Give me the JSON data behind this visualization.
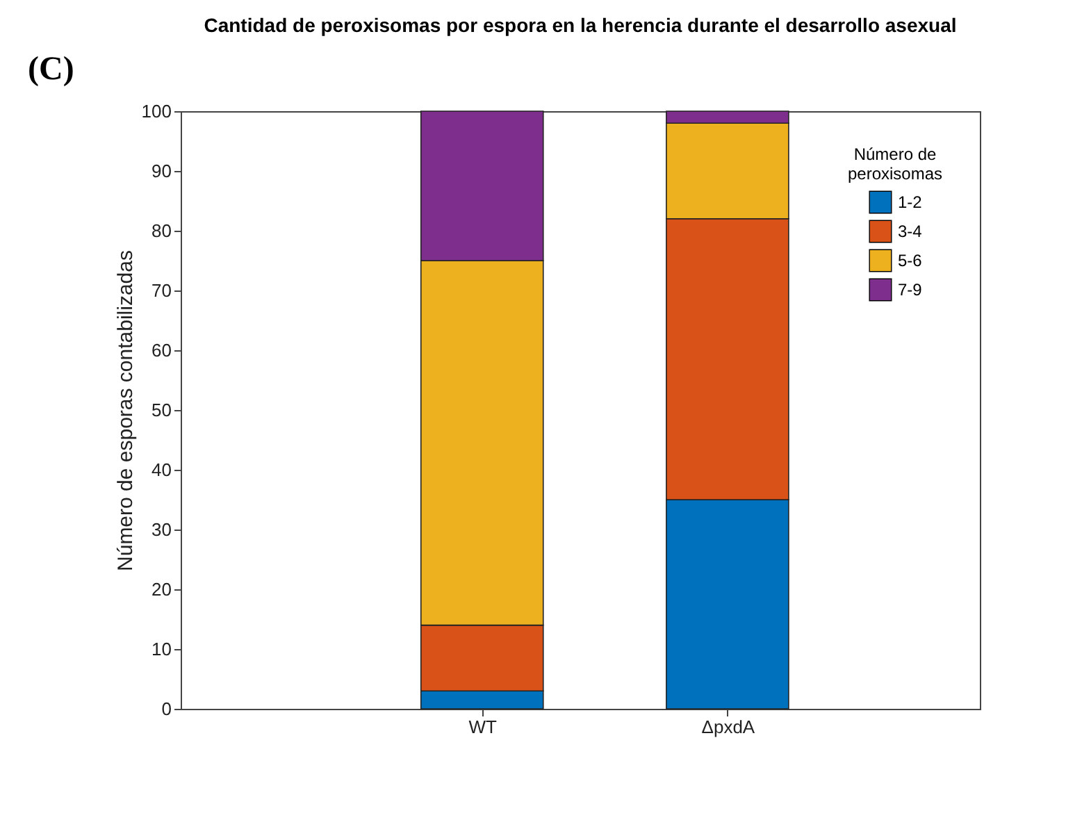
{
  "chart_data": {
    "type": "bar",
    "stacked": true,
    "title": "Cantidad de peroxisomas por espora en la herencia durante el desarrollo asexual",
    "ylabel": "Número de esporas contabilizadas",
    "legend_title": "Número de peroxisomas",
    "annotations": [
      "(C)"
    ],
    "categories": [
      "WT",
      "ΔpxdA"
    ],
    "series": [
      {
        "name": "1-2",
        "color": "#0072bd",
        "values": [
          3,
          35
        ]
      },
      {
        "name": "3-4",
        "color": "#d95319",
        "values": [
          11,
          47
        ]
      },
      {
        "name": "5-6",
        "color": "#edb120",
        "values": [
          61,
          16
        ]
      },
      {
        "name": "7-9",
        "color": "#7e2f8e",
        "values": [
          25,
          2
        ]
      }
    ],
    "ylim": [
      0,
      100
    ],
    "yticks": [
      0,
      10,
      20,
      30,
      40,
      50,
      60,
      70,
      80,
      90,
      100
    ],
    "grid": false,
    "legend": "top right"
  }
}
